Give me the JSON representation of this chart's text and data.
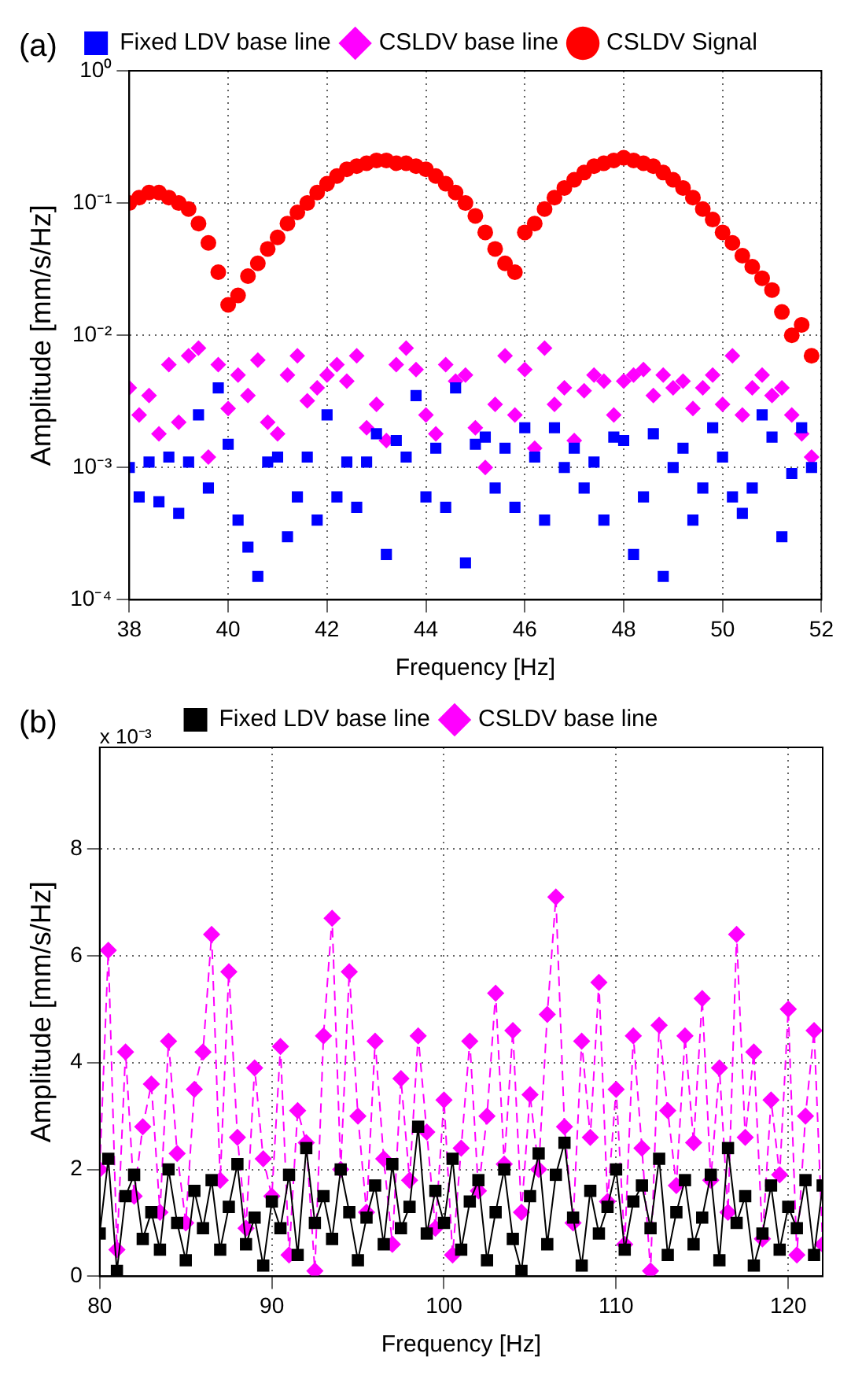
{
  "chart_data": [
    {
      "type": "scatter",
      "annotations": [
        "(a)"
      ],
      "xlabel": "Frequency [Hz]",
      "ylabel": "Amplitude [mm/s/Hz]",
      "log": "y",
      "grid": true,
      "legend": "top",
      "x": [
        38.0,
        38.2,
        38.4,
        38.6,
        38.8,
        39.0,
        39.2,
        39.4,
        39.6,
        39.8,
        40.0,
        40.2,
        40.4,
        40.6,
        40.8,
        41.0,
        41.2,
        41.4,
        41.6,
        41.8,
        42.0,
        42.2,
        42.4,
        42.6,
        42.8,
        43.0,
        43.2,
        43.4,
        43.6,
        43.8,
        44.0,
        44.2,
        44.4,
        44.6,
        44.8,
        45.0,
        45.2,
        45.4,
        45.6,
        45.8,
        46.0,
        46.2,
        46.4,
        46.6,
        46.8,
        47.0,
        47.2,
        47.4,
        47.6,
        47.8,
        48.0,
        48.2,
        48.4,
        48.6,
        48.8,
        49.0,
        49.2,
        49.4,
        49.6,
        49.8,
        50.0,
        50.2,
        50.4,
        50.6,
        50.8,
        51.0,
        51.2,
        51.4,
        51.6,
        51.8
      ],
      "xlim": [
        38,
        52
      ],
      "xticks": [
        38,
        40,
        42,
        44,
        46,
        48,
        50,
        52
      ],
      "ylim": [
        0.0001,
        1
      ],
      "yticks": [
        {
          "value": 0.0001,
          "label": "10⁻⁴"
        },
        {
          "value": 0.001,
          "label": "10⁻³"
        },
        {
          "value": 0.01,
          "label": "10⁻²"
        },
        {
          "value": 0.1,
          "label": "10⁻¹"
        },
        {
          "value": 1,
          "label": "10⁰"
        }
      ],
      "series": [
        {
          "name": "Fixed LDV base line",
          "color": "#0000ff",
          "marker": "square",
          "values": [
            0.001,
            0.0006,
            0.0011,
            0.00055,
            0.0012,
            0.00045,
            0.0011,
            0.0025,
            0.0007,
            0.004,
            0.0015,
            0.0004,
            0.00025,
            0.00015,
            0.0011,
            0.0012,
            0.0003,
            0.0006,
            0.0012,
            0.0004,
            0.0025,
            0.0006,
            0.0011,
            0.0005,
            0.0011,
            0.0018,
            0.00022,
            0.0016,
            0.0012,
            0.0035,
            0.0006,
            0.0014,
            0.0005,
            0.004,
            0.00019,
            0.0015,
            0.0017,
            0.0007,
            0.0014,
            0.0005,
            0.002,
            0.0012,
            0.0004,
            0.002,
            0.001,
            0.0014,
            0.0007,
            0.0011,
            0.0004,
            0.0017,
            0.0016,
            0.00022,
            0.0006,
            0.0018,
            0.00015,
            0.001,
            0.0014,
            0.0004,
            0.0007,
            0.002,
            0.0012,
            0.0006,
            0.00045,
            0.0007,
            0.0025,
            0.0017,
            0.0003,
            0.0009,
            0.002,
            0.001
          ]
        },
        {
          "name": "CSLDV base line",
          "color": "#ff00ff",
          "marker": "diamond",
          "values": [
            0.004,
            0.0025,
            0.0035,
            0.0018,
            0.006,
            0.0022,
            0.007,
            0.008,
            0.0012,
            0.006,
            0.0028,
            0.005,
            0.0035,
            0.0065,
            0.0022,
            0.0018,
            0.005,
            0.007,
            0.0032,
            0.004,
            0.005,
            0.006,
            0.0045,
            0.007,
            0.002,
            0.003,
            0.0016,
            0.006,
            0.008,
            0.0055,
            0.0025,
            0.0018,
            0.006,
            0.0045,
            0.005,
            0.002,
            0.001,
            0.003,
            0.007,
            0.0025,
            0.0055,
            0.0014,
            0.008,
            0.003,
            0.004,
            0.0016,
            0.0038,
            0.005,
            0.0045,
            0.0025,
            0.0045,
            0.005,
            0.0055,
            0.0035,
            0.005,
            0.004,
            0.0045,
            0.0028,
            0.004,
            0.005,
            0.003,
            0.007,
            0.0025,
            0.004,
            0.005,
            0.0035,
            0.004,
            0.0025,
            0.0018,
            0.0012
          ]
        },
        {
          "name": "CSLDV Signal",
          "color": "#ff0000",
          "marker": "circle",
          "values": [
            0.1,
            0.11,
            0.12,
            0.12,
            0.11,
            0.1,
            0.09,
            0.07,
            0.05,
            0.03,
            0.017,
            0.02,
            0.028,
            0.035,
            0.045,
            0.055,
            0.07,
            0.085,
            0.1,
            0.12,
            0.14,
            0.16,
            0.18,
            0.19,
            0.2,
            0.21,
            0.21,
            0.2,
            0.2,
            0.19,
            0.18,
            0.16,
            0.14,
            0.12,
            0.1,
            0.08,
            0.06,
            0.045,
            0.035,
            0.03,
            0.06,
            0.07,
            0.09,
            0.11,
            0.13,
            0.15,
            0.17,
            0.19,
            0.2,
            0.21,
            0.22,
            0.21,
            0.2,
            0.19,
            0.17,
            0.15,
            0.13,
            0.11,
            0.09,
            0.075,
            0.06,
            0.05,
            0.04,
            0.033,
            0.027,
            0.022,
            0.015,
            0.01,
            0.012,
            0.007
          ]
        }
      ]
    },
    {
      "type": "line",
      "annotations": [
        "(b)",
        "x 10⁻³"
      ],
      "xlabel": "Frequency [Hz]",
      "ylabel": "Amplitude [mm/s/Hz]",
      "grid": true,
      "legend": "top",
      "x": [
        80,
        80.5,
        81,
        81.5,
        82,
        82.5,
        83,
        83.5,
        84,
        84.5,
        85,
        85.5,
        86,
        86.5,
        87,
        87.5,
        88,
        88.5,
        89,
        89.5,
        90,
        90.5,
        91,
        91.5,
        92,
        92.5,
        93,
        93.5,
        94,
        94.5,
        95,
        95.5,
        96,
        96.5,
        97,
        97.5,
        98,
        98.5,
        99,
        99.5,
        100,
        100.5,
        101,
        101.5,
        102,
        102.5,
        103,
        103.5,
        104,
        104.5,
        105,
        105.5,
        106,
        106.5,
        107,
        107.5,
        108,
        108.5,
        109,
        109.5,
        110,
        110.5,
        111,
        111.5,
        112,
        112.5,
        113,
        113.5,
        114,
        114.5,
        115,
        115.5,
        116,
        116.5,
        117,
        117.5,
        118,
        118.5,
        119,
        119.5,
        120,
        120.5,
        121,
        121.5,
        122
      ],
      "xlim": [
        80,
        122
      ],
      "xticks": [
        80,
        90,
        100,
        110,
        120
      ],
      "ylim": [
        0,
        9.9
      ],
      "yticks": [
        0,
        2,
        4,
        6,
        8
      ],
      "series": [
        {
          "name": "Fixed LDV base line",
          "color": "#000000",
          "marker": "square",
          "line_style": "solid",
          "values": [
            0.8,
            2.2,
            0.1,
            1.5,
            1.9,
            0.7,
            1.2,
            0.5,
            2.0,
            1.0,
            0.3,
            1.6,
            0.9,
            1.8,
            0.5,
            1.3,
            2.1,
            0.6,
            1.1,
            0.2,
            1.4,
            0.9,
            1.9,
            0.4,
            2.4,
            1.0,
            1.5,
            0.7,
            2.0,
            1.2,
            0.3,
            1.1,
            1.7,
            0.6,
            2.1,
            0.9,
            1.3,
            2.8,
            0.8,
            1.6,
            1.0,
            2.2,
            0.5,
            1.4,
            1.8,
            0.3,
            1.2,
            2.0,
            0.7,
            0.1,
            1.5,
            2.3,
            0.6,
            1.9,
            2.5,
            1.1,
            0.2,
            1.6,
            0.8,
            1.3,
            2.0,
            0.5,
            1.4,
            1.7,
            0.9,
            2.2,
            0.4,
            1.2,
            1.8,
            0.6,
            1.1,
            1.9,
            0.3,
            2.4,
            1.0,
            1.5,
            0.2,
            0.8,
            1.7,
            0.5,
            1.3,
            0.9,
            1.8,
            0.4,
            1.7
          ]
        },
        {
          "name": "CSLDV base line",
          "color": "#ff00ff",
          "marker": "diamond",
          "line_style": "dashed",
          "values": [
            2.0,
            6.1,
            0.5,
            4.2,
            1.5,
            2.8,
            3.6,
            1.2,
            4.4,
            2.3,
            1.0,
            3.5,
            4.2,
            6.4,
            1.8,
            5.7,
            2.6,
            0.9,
            3.9,
            2.2,
            1.5,
            4.3,
            0.4,
            3.1,
            2.5,
            0.1,
            4.5,
            6.7,
            2.0,
            5.7,
            3.0,
            1.2,
            4.4,
            2.2,
            0.6,
            3.7,
            1.8,
            4.5,
            2.7,
            0.9,
            3.3,
            0.4,
            2.4,
            4.4,
            1.6,
            3.0,
            5.3,
            2.1,
            4.6,
            1.2,
            3.4,
            2.0,
            4.9,
            7.1,
            2.8,
            1.0,
            4.4,
            2.6,
            5.5,
            1.4,
            3.5,
            0.6,
            4.5,
            2.4,
            0.1,
            4.7,
            3.1,
            1.7,
            4.5,
            2.5,
            5.2,
            1.8,
            3.9,
            1.2,
            6.4,
            2.6,
            4.2,
            0.7,
            3.3,
            1.9,
            5.0,
            0.4,
            3.0,
            4.6,
            0.6
          ]
        }
      ]
    }
  ]
}
